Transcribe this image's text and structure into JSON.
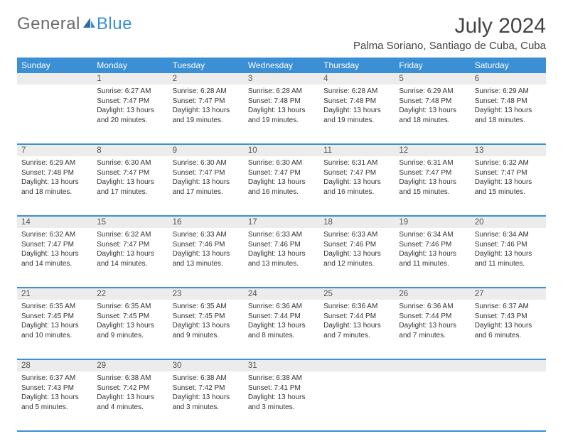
{
  "logo": {
    "part1": "General",
    "part2": "Blue"
  },
  "title": "July 2024",
  "location": "Palma Soriano, Santiago de Cuba, Cuba",
  "colors": {
    "brand_blue": "#3b8fd4",
    "header_text": "#ffffff",
    "daynum_bg": "#ececec",
    "text": "#333333",
    "page_bg": "#ffffff"
  },
  "weekdays": [
    "Sunday",
    "Monday",
    "Tuesday",
    "Wednesday",
    "Thursday",
    "Friday",
    "Saturday"
  ],
  "weeks": [
    {
      "nums": [
        "",
        "1",
        "2",
        "3",
        "4",
        "5",
        "6"
      ],
      "cells": [
        null,
        {
          "sunrise": "Sunrise: 6:27 AM",
          "sunset": "Sunset: 7:47 PM",
          "day1": "Daylight: 13 hours",
          "day2": "and 20 minutes."
        },
        {
          "sunrise": "Sunrise: 6:28 AM",
          "sunset": "Sunset: 7:47 PM",
          "day1": "Daylight: 13 hours",
          "day2": "and 19 minutes."
        },
        {
          "sunrise": "Sunrise: 6:28 AM",
          "sunset": "Sunset: 7:48 PM",
          "day1": "Daylight: 13 hours",
          "day2": "and 19 minutes."
        },
        {
          "sunrise": "Sunrise: 6:28 AM",
          "sunset": "Sunset: 7:48 PM",
          "day1": "Daylight: 13 hours",
          "day2": "and 19 minutes."
        },
        {
          "sunrise": "Sunrise: 6:29 AM",
          "sunset": "Sunset: 7:48 PM",
          "day1": "Daylight: 13 hours",
          "day2": "and 18 minutes."
        },
        {
          "sunrise": "Sunrise: 6:29 AM",
          "sunset": "Sunset: 7:48 PM",
          "day1": "Daylight: 13 hours",
          "day2": "and 18 minutes."
        }
      ]
    },
    {
      "nums": [
        "7",
        "8",
        "9",
        "10",
        "11",
        "12",
        "13"
      ],
      "cells": [
        {
          "sunrise": "Sunrise: 6:29 AM",
          "sunset": "Sunset: 7:48 PM",
          "day1": "Daylight: 13 hours",
          "day2": "and 18 minutes."
        },
        {
          "sunrise": "Sunrise: 6:30 AM",
          "sunset": "Sunset: 7:47 PM",
          "day1": "Daylight: 13 hours",
          "day2": "and 17 minutes."
        },
        {
          "sunrise": "Sunrise: 6:30 AM",
          "sunset": "Sunset: 7:47 PM",
          "day1": "Daylight: 13 hours",
          "day2": "and 17 minutes."
        },
        {
          "sunrise": "Sunrise: 6:30 AM",
          "sunset": "Sunset: 7:47 PM",
          "day1": "Daylight: 13 hours",
          "day2": "and 16 minutes."
        },
        {
          "sunrise": "Sunrise: 6:31 AM",
          "sunset": "Sunset: 7:47 PM",
          "day1": "Daylight: 13 hours",
          "day2": "and 16 minutes."
        },
        {
          "sunrise": "Sunrise: 6:31 AM",
          "sunset": "Sunset: 7:47 PM",
          "day1": "Daylight: 13 hours",
          "day2": "and 15 minutes."
        },
        {
          "sunrise": "Sunrise: 6:32 AM",
          "sunset": "Sunset: 7:47 PM",
          "day1": "Daylight: 13 hours",
          "day2": "and 15 minutes."
        }
      ]
    },
    {
      "nums": [
        "14",
        "15",
        "16",
        "17",
        "18",
        "19",
        "20"
      ],
      "cells": [
        {
          "sunrise": "Sunrise: 6:32 AM",
          "sunset": "Sunset: 7:47 PM",
          "day1": "Daylight: 13 hours",
          "day2": "and 14 minutes."
        },
        {
          "sunrise": "Sunrise: 6:32 AM",
          "sunset": "Sunset: 7:47 PM",
          "day1": "Daylight: 13 hours",
          "day2": "and 14 minutes."
        },
        {
          "sunrise": "Sunrise: 6:33 AM",
          "sunset": "Sunset: 7:46 PM",
          "day1": "Daylight: 13 hours",
          "day2": "and 13 minutes."
        },
        {
          "sunrise": "Sunrise: 6:33 AM",
          "sunset": "Sunset: 7:46 PM",
          "day1": "Daylight: 13 hours",
          "day2": "and 13 minutes."
        },
        {
          "sunrise": "Sunrise: 6:33 AM",
          "sunset": "Sunset: 7:46 PM",
          "day1": "Daylight: 13 hours",
          "day2": "and 12 minutes."
        },
        {
          "sunrise": "Sunrise: 6:34 AM",
          "sunset": "Sunset: 7:46 PM",
          "day1": "Daylight: 13 hours",
          "day2": "and 11 minutes."
        },
        {
          "sunrise": "Sunrise: 6:34 AM",
          "sunset": "Sunset: 7:46 PM",
          "day1": "Daylight: 13 hours",
          "day2": "and 11 minutes."
        }
      ]
    },
    {
      "nums": [
        "21",
        "22",
        "23",
        "24",
        "25",
        "26",
        "27"
      ],
      "cells": [
        {
          "sunrise": "Sunrise: 6:35 AM",
          "sunset": "Sunset: 7:45 PM",
          "day1": "Daylight: 13 hours",
          "day2": "and 10 minutes."
        },
        {
          "sunrise": "Sunrise: 6:35 AM",
          "sunset": "Sunset: 7:45 PM",
          "day1": "Daylight: 13 hours",
          "day2": "and 9 minutes."
        },
        {
          "sunrise": "Sunrise: 6:35 AM",
          "sunset": "Sunset: 7:45 PM",
          "day1": "Daylight: 13 hours",
          "day2": "and 9 minutes."
        },
        {
          "sunrise": "Sunrise: 6:36 AM",
          "sunset": "Sunset: 7:44 PM",
          "day1": "Daylight: 13 hours",
          "day2": "and 8 minutes."
        },
        {
          "sunrise": "Sunrise: 6:36 AM",
          "sunset": "Sunset: 7:44 PM",
          "day1": "Daylight: 13 hours",
          "day2": "and 7 minutes."
        },
        {
          "sunrise": "Sunrise: 6:36 AM",
          "sunset": "Sunset: 7:44 PM",
          "day1": "Daylight: 13 hours",
          "day2": "and 7 minutes."
        },
        {
          "sunrise": "Sunrise: 6:37 AM",
          "sunset": "Sunset: 7:43 PM",
          "day1": "Daylight: 13 hours",
          "day2": "and 6 minutes."
        }
      ]
    },
    {
      "nums": [
        "28",
        "29",
        "30",
        "31",
        "",
        "",
        ""
      ],
      "cells": [
        {
          "sunrise": "Sunrise: 6:37 AM",
          "sunset": "Sunset: 7:43 PM",
          "day1": "Daylight: 13 hours",
          "day2": "and 5 minutes."
        },
        {
          "sunrise": "Sunrise: 6:38 AM",
          "sunset": "Sunset: 7:42 PM",
          "day1": "Daylight: 13 hours",
          "day2": "and 4 minutes."
        },
        {
          "sunrise": "Sunrise: 6:38 AM",
          "sunset": "Sunset: 7:42 PM",
          "day1": "Daylight: 13 hours",
          "day2": "and 3 minutes."
        },
        {
          "sunrise": "Sunrise: 6:38 AM",
          "sunset": "Sunset: 7:41 PM",
          "day1": "Daylight: 13 hours",
          "day2": "and 3 minutes."
        },
        null,
        null,
        null
      ]
    }
  ]
}
